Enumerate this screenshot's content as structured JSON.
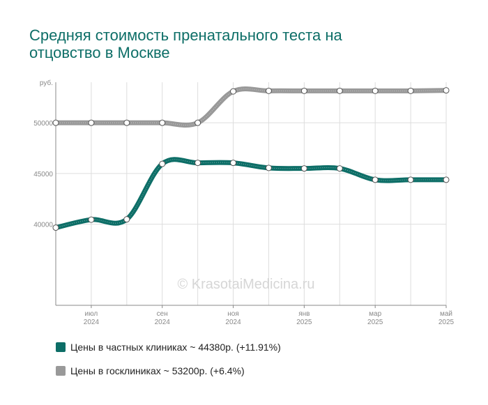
{
  "title": {
    "line1": "Средняя стоимость пренатального теста на",
    "line2": "отцовство в Москве"
  },
  "watermark": "© KrasotaiMedicina.ru",
  "chart_data": {
    "type": "line",
    "y_unit_label": "руб.",
    "ylim": [
      32000,
      54000
    ],
    "y_ticks": [
      40000,
      45000,
      50000
    ],
    "grid": true,
    "x_points": [
      "2024-06",
      "2024-07",
      "2024-08",
      "2024-09",
      "2024-10",
      "2024-11",
      "2024-12",
      "2025-01",
      "2025-02",
      "2025-03",
      "2025-04",
      "2025-05"
    ],
    "x_tick_labels": [
      {
        "month": "июл",
        "year": "2024",
        "index": 1
      },
      {
        "month": "сен",
        "year": "2024",
        "index": 3
      },
      {
        "month": "ноя",
        "year": "2024",
        "index": 5
      },
      {
        "month": "янв",
        "year": "2025",
        "index": 7
      },
      {
        "month": "мар",
        "year": "2025",
        "index": 9
      },
      {
        "month": "май",
        "year": "2025",
        "index": 11
      }
    ],
    "series": [
      {
        "name": "Цены в частных клиниках ~ 44380р. (+11.91%)",
        "color": "#0d6e67",
        "values": [
          39660,
          40450,
          40480,
          45950,
          46050,
          46050,
          45550,
          45500,
          45500,
          44380,
          44380,
          44380
        ]
      },
      {
        "name": "Цены в госклиниках ~ 53200р. (+6.4%)",
        "color": "#999999",
        "values": [
          50000,
          50000,
          50000,
          50000,
          50000,
          53100,
          53150,
          53150,
          53150,
          53150,
          53150,
          53200
        ]
      }
    ],
    "legend_position": "bottom-left"
  }
}
